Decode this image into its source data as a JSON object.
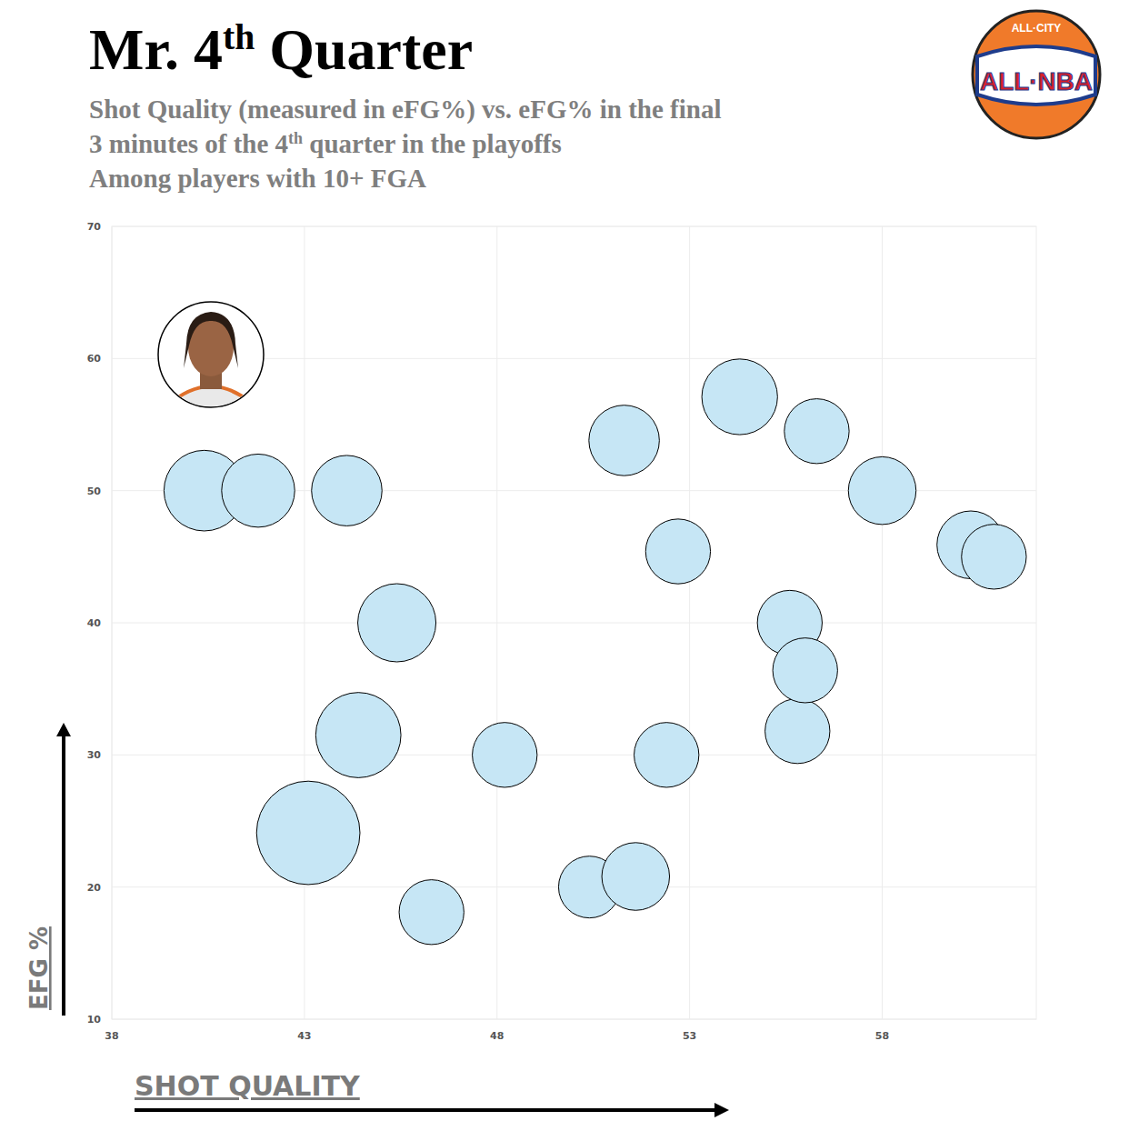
{
  "chart_data": {
    "type": "scatter",
    "title": "Mr. 4th Quarter",
    "subtitle": [
      "Shot Quality (measured in eFG%) vs. eFG% in the final",
      "3 minutes of the 4th quarter in the playoffs",
      "Among players with 10+ FGA"
    ],
    "x_label": "SHOT QUALITY",
    "y_label": "EFG %",
    "logo": [
      "ALL·CITY",
      "ALL·NBA"
    ],
    "x": [
      40.4,
      41.8,
      44.1,
      45.4,
      44.4,
      43.1,
      46.3,
      48.2,
      50.4,
      51.6,
      51.3,
      52.4,
      52.7,
      54.3,
      56.3,
      58.0,
      55.6,
      55.8,
      56.0,
      60.3,
      60.9
    ],
    "values": [
      50,
      50,
      50,
      40,
      31.5,
      24.1,
      18.1,
      30,
      20,
      20.8,
      53.8,
      30,
      45.4,
      57.1,
      54.5,
      50,
      40,
      31.8,
      36.4,
      45.9,
      45
    ],
    "sizes": [
      17,
      14,
      13,
      16,
      19,
      28,
      11,
      11,
      10,
      12,
      13,
      11,
      11,
      15,
      11,
      12,
      11,
      11,
      11,
      12,
      11
    ],
    "color": "#c6e6f5",
    "marker": "circle",
    "xlim": [
      38,
      62
    ],
    "ylim": [
      10,
      70
    ],
    "xticks": [
      38,
      43,
      48,
      53,
      58
    ],
    "yticks": [
      10,
      20,
      30,
      40,
      50,
      60,
      70
    ],
    "grid": true
  }
}
